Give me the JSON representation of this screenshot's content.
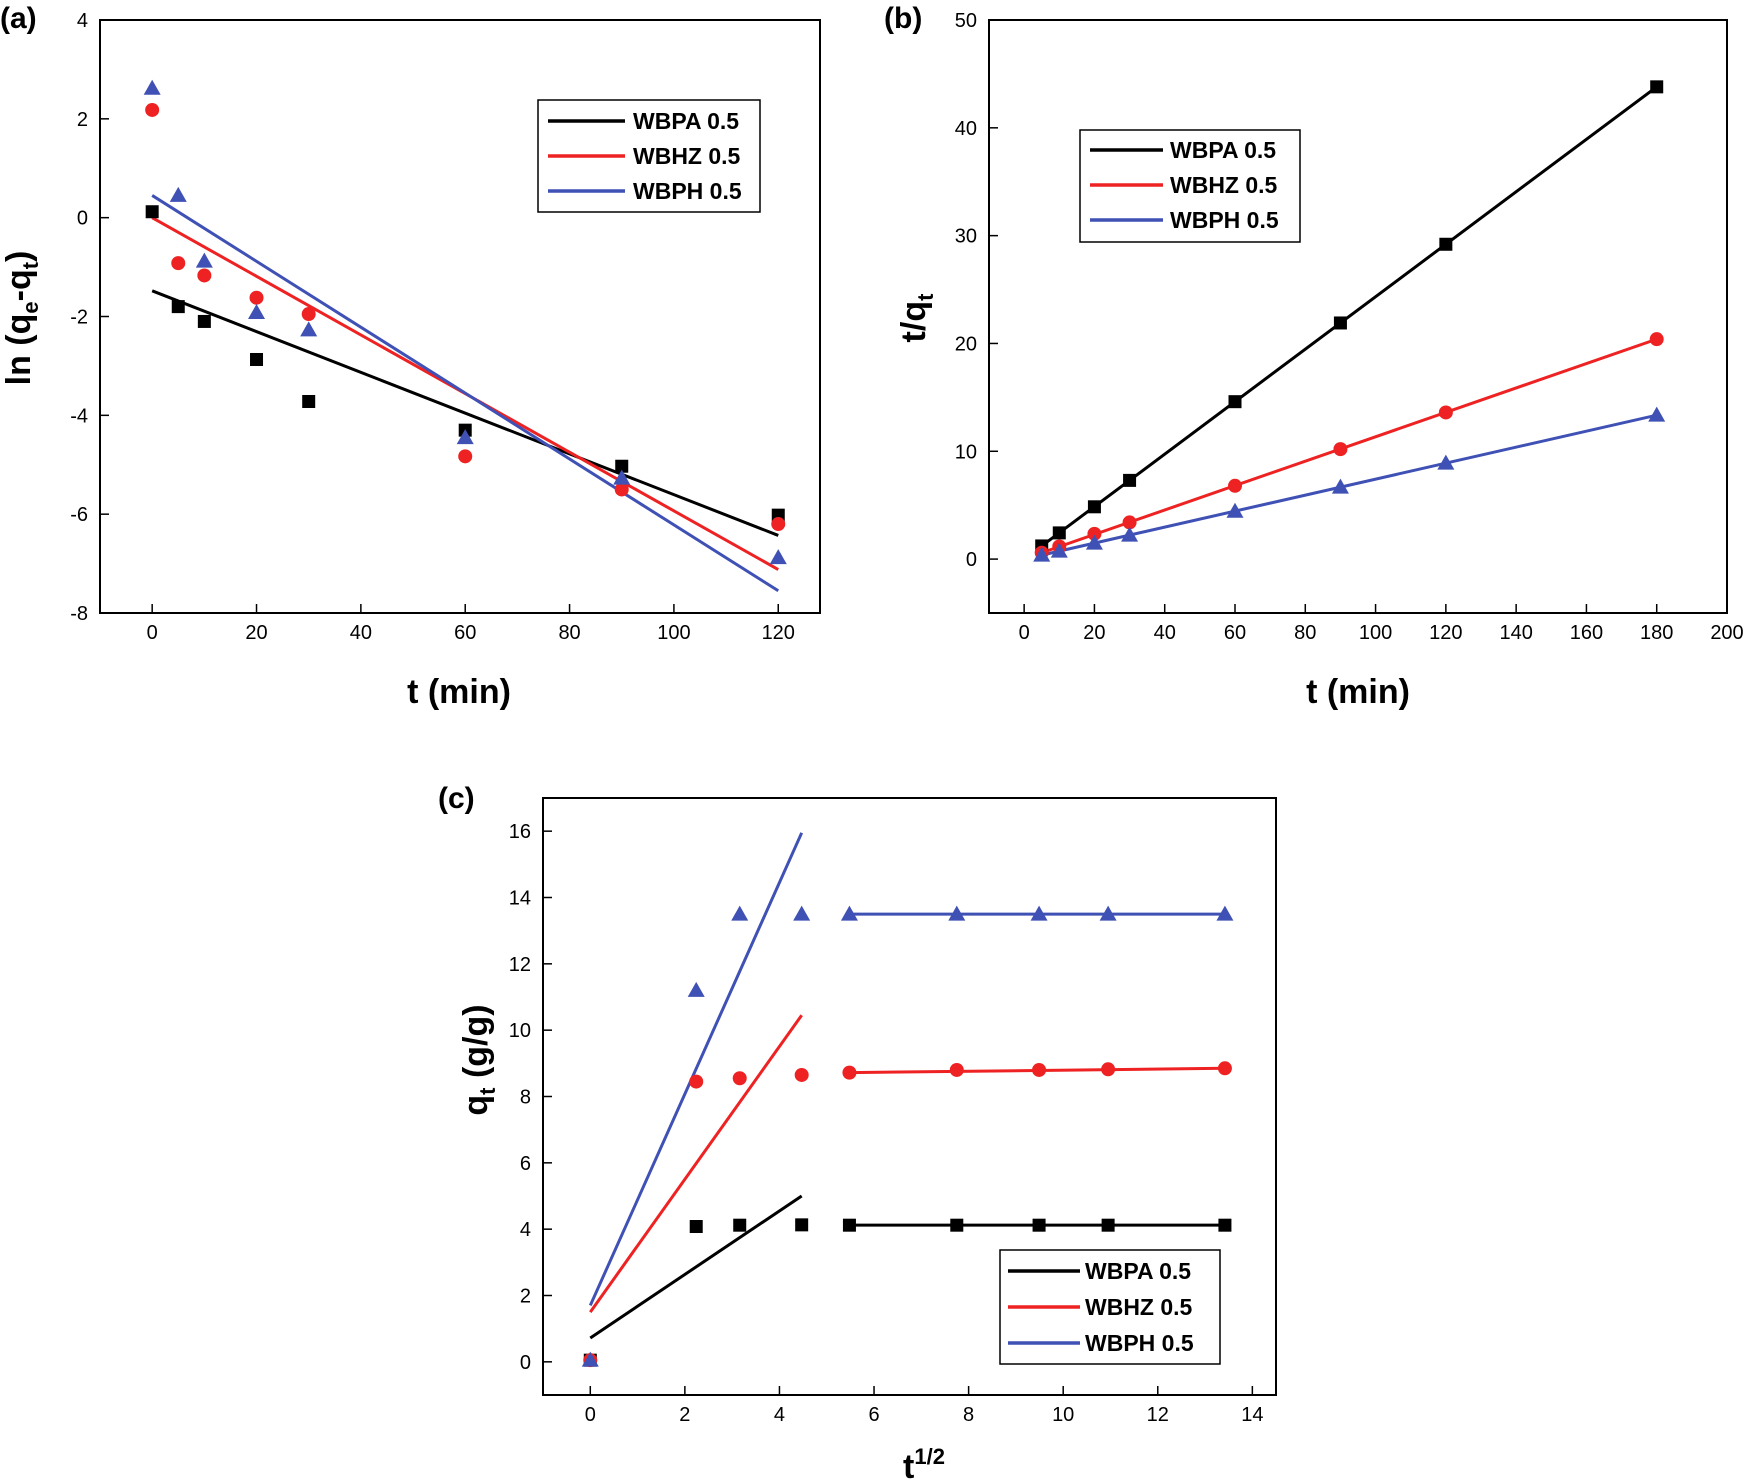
{
  "chart_data": [
    {
      "panel": "(a)",
      "type": "scatter",
      "xlabel": "t (min)",
      "ylabel": "ln (qe-qt)",
      "xlim": [
        -10,
        128
      ],
      "ylim": [
        -8,
        4
      ],
      "xticks": [
        0,
        20,
        40,
        60,
        80,
        100,
        120
      ],
      "yticks": [
        -8,
        -6,
        -4,
        -2,
        0,
        2,
        4
      ],
      "legend_position": "top-right",
      "series": [
        {
          "name": "WBPA 0.5",
          "color": "#000000",
          "marker": "square",
          "x": [
            0,
            5,
            10,
            20,
            30,
            60,
            90,
            120
          ],
          "y": [
            0.12,
            -1.8,
            -2.1,
            -2.87,
            -3.72,
            -4.3,
            -5.03,
            -6.02
          ],
          "fit": {
            "x": [
              0,
              120
            ],
            "y": [
              -1.48,
              -6.43
            ]
          }
        },
        {
          "name": "WBHZ 0.5",
          "color": "#ee2222",
          "marker": "circle",
          "x": [
            0,
            5,
            10,
            20,
            30,
            60,
            90,
            120
          ],
          "y": [
            2.18,
            -0.92,
            -1.17,
            -1.62,
            -1.95,
            -4.83,
            -5.5,
            -6.2
          ],
          "fit": {
            "x": [
              0,
              120
            ],
            "y": [
              0.0,
              -7.12
            ]
          }
        },
        {
          "name": "WBPH 0.5",
          "color": "#3f51b5",
          "marker": "triangle",
          "x": [
            0,
            5,
            10,
            20,
            30,
            60,
            90,
            120
          ],
          "y": [
            2.62,
            0.45,
            -0.88,
            -1.92,
            -2.27,
            -4.45,
            -5.27,
            -6.88
          ],
          "fit": {
            "x": [
              0,
              120
            ],
            "y": [
              0.45,
              -7.55
            ]
          }
        }
      ]
    },
    {
      "panel": "(b)",
      "type": "scatter",
      "xlabel": "t (min)",
      "ylabel": "t/qt",
      "xlim": [
        -10,
        200
      ],
      "ylim": [
        -5,
        50
      ],
      "xticks": [
        0,
        20,
        40,
        60,
        80,
        100,
        120,
        140,
        160,
        180,
        200
      ],
      "yticks": [
        0,
        10,
        20,
        30,
        40,
        50
      ],
      "legend_position": "top-left",
      "series": [
        {
          "name": "WBPA 0.5",
          "color": "#000000",
          "marker": "square",
          "x": [
            5,
            10,
            20,
            30,
            60,
            90,
            120,
            180
          ],
          "y": [
            1.22,
            2.43,
            4.85,
            7.3,
            14.6,
            21.9,
            29.2,
            43.8
          ],
          "fit": {
            "x": [
              5,
              180
            ],
            "y": [
              1.22,
              43.8
            ]
          }
        },
        {
          "name": "WBHZ 0.5",
          "color": "#ee2222",
          "marker": "circle",
          "x": [
            5,
            10,
            20,
            30,
            60,
            90,
            120,
            180
          ],
          "y": [
            0.59,
            1.17,
            2.34,
            3.4,
            6.8,
            10.2,
            13.6,
            20.4
          ],
          "fit": {
            "x": [
              5,
              180
            ],
            "y": [
              0.59,
              20.4
            ]
          }
        },
        {
          "name": "WBPH 0.5",
          "color": "#3f51b5",
          "marker": "triangle",
          "x": [
            5,
            10,
            20,
            30,
            60,
            90,
            120,
            180
          ],
          "y": [
            0.37,
            0.74,
            1.48,
            2.22,
            4.44,
            6.67,
            8.9,
            13.35
          ],
          "fit": {
            "x": [
              5,
              180
            ],
            "y": [
              0.37,
              13.35
            ]
          }
        }
      ]
    },
    {
      "panel": "(c)",
      "type": "scatter",
      "xlabel": "t1/2",
      "ylabel": "qt (g/g)",
      "xlim": [
        -1,
        14.5
      ],
      "ylim": [
        -1,
        17
      ],
      "xticks": [
        0,
        2,
        4,
        6,
        8,
        10,
        12,
        14
      ],
      "yticks": [
        0,
        2,
        4,
        6,
        8,
        10,
        12,
        14,
        16
      ],
      "legend_position": "bottom-right",
      "series": [
        {
          "name": "WBPA 0.5",
          "color": "#000000",
          "marker": "square",
          "x": [
            0,
            2.24,
            3.16,
            4.47,
            5.48,
            7.75,
            9.49,
            10.95,
            13.42
          ],
          "y": [
            0.05,
            4.08,
            4.12,
            4.13,
            4.12,
            4.12,
            4.12,
            4.12,
            4.12
          ],
          "fit1": {
            "x": [
              0,
              4.47
            ],
            "y": [
              0.72,
              5.0
            ]
          },
          "fit2": {
            "x": [
              5.48,
              13.42
            ],
            "y": [
              4.12,
              4.12
            ]
          }
        },
        {
          "name": "WBHZ 0.5",
          "color": "#ee2222",
          "marker": "circle",
          "x": [
            0,
            2.24,
            3.16,
            4.47,
            5.48,
            7.75,
            9.49,
            10.95,
            13.42
          ],
          "y": [
            0.05,
            8.45,
            8.55,
            8.65,
            8.72,
            8.8,
            8.8,
            8.82,
            8.85
          ],
          "fit1": {
            "x": [
              0,
              4.47
            ],
            "y": [
              1.5,
              10.45
            ]
          },
          "fit2": {
            "x": [
              5.48,
              13.42
            ],
            "y": [
              8.72,
              8.85
            ]
          }
        },
        {
          "name": "WBPH 0.5",
          "color": "#3f51b5",
          "marker": "triangle",
          "x": [
            0,
            2.24,
            3.16,
            4.47,
            5.48,
            7.75,
            9.49,
            10.95,
            13.42
          ],
          "y": [
            0.05,
            11.2,
            13.5,
            13.5,
            13.5,
            13.5,
            13.5,
            13.5,
            13.5
          ],
          "fit1": {
            "x": [
              0,
              4.47
            ],
            "y": [
              1.7,
              15.95
            ]
          },
          "fit2": {
            "x": [
              5.48,
              13.42
            ],
            "y": [
              13.5,
              13.5
            ]
          }
        }
      ]
    }
  ]
}
